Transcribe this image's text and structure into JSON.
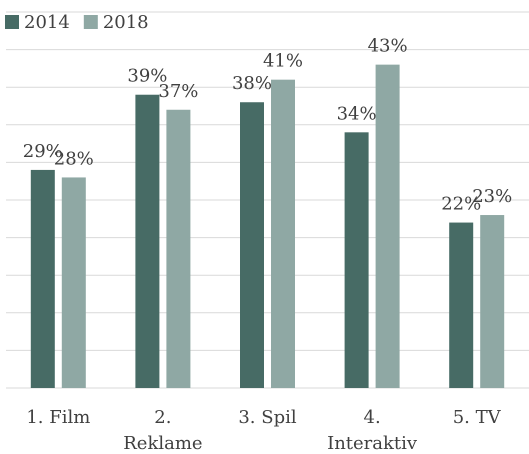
{
  "chart_data": {
    "type": "bar",
    "categories": [
      "1. Film",
      "2. Reklame",
      "3. Spil",
      "4. Interaktiv",
      "5. TV"
    ],
    "series": [
      {
        "name": "2014",
        "color": "#476b65",
        "values": [
          29,
          39,
          38,
          34,
          22
        ],
        "value_labels": [
          "29%",
          "39%",
          "38%",
          "34%",
          "22%"
        ]
      },
      {
        "name": "2018",
        "color": "#8fa8a4",
        "values": [
          28,
          37,
          41,
          43,
          23
        ],
        "value_labels": [
          "28%",
          "37%",
          "41%",
          "43%",
          "23%"
        ]
      }
    ],
    "ylim": [
      0,
      50
    ],
    "yticks": [
      0,
      5,
      10,
      15,
      20,
      25,
      30,
      35,
      40,
      45,
      50
    ],
    "grid": true,
    "legend": "top-left"
  }
}
